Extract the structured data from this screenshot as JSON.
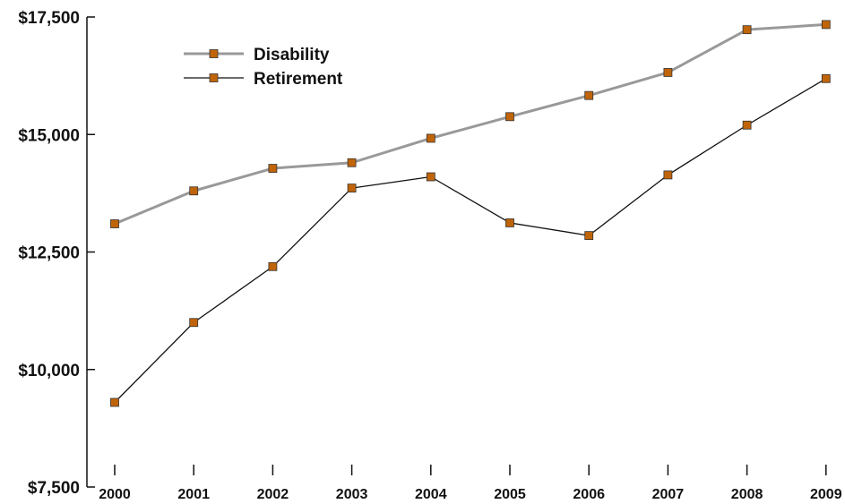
{
  "chart_data": {
    "type": "line",
    "title": "",
    "xlabel": "",
    "ylabel": "",
    "categories": [
      "2000",
      "2001",
      "2002",
      "2003",
      "2004",
      "2005",
      "2006",
      "2007",
      "2008",
      "2009"
    ],
    "ylim": [
      7500,
      17500
    ],
    "yticks": [
      7500,
      10000,
      12500,
      15000,
      17500
    ],
    "ytick_labels": [
      "$7,500",
      "$10,000",
      "$12,500",
      "$15,000",
      "$17,500"
    ],
    "grid": false,
    "legend_position": "top-left",
    "series": [
      {
        "name": "Disability",
        "color": "#999999",
        "marker_color": "#c0640a",
        "values": [
          13100,
          13800,
          14280,
          14400,
          14920,
          15380,
          15830,
          16320,
          17230,
          17340
        ]
      },
      {
        "name": "Retirement",
        "color": "#111111",
        "marker_color": "#c0640a",
        "values": [
          9300,
          11000,
          12190,
          13860,
          14100,
          13120,
          12850,
          14140,
          15200,
          16190
        ]
      }
    ]
  }
}
